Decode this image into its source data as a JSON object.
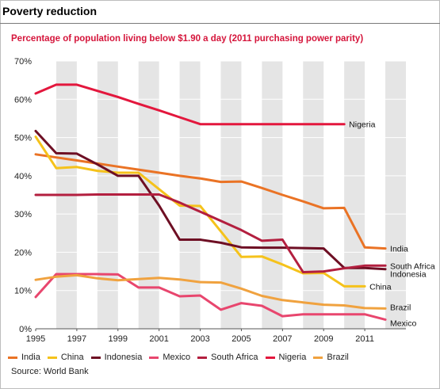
{
  "header": {
    "title": "Poverty reduction"
  },
  "chart_data": {
    "type": "line",
    "title": "Percentage of population living below $1.90 a day (2011 purchasing power parity)",
    "xlabel": "",
    "ylabel": "",
    "xlim": [
      1995,
      2013
    ],
    "ylim": [
      0,
      70
    ],
    "x_ticks": [
      "1995",
      "1997",
      "1999",
      "2001",
      "2003",
      "2005",
      "2007",
      "2009",
      "2011"
    ],
    "y_ticks": [
      "0%",
      "10%",
      "20%",
      "30%",
      "40%",
      "50%",
      "60%",
      "70%"
    ],
    "grid": "alternating vertical bands",
    "legend_position": "bottom",
    "series": [
      {
        "name": "India",
        "color": "#ea7325",
        "points": [
          [
            1995,
            45.6
          ],
          [
            1996,
            44.8
          ],
          [
            1997,
            44
          ],
          [
            1998,
            43.2
          ],
          [
            1999,
            42.4
          ],
          [
            2000,
            41.6
          ],
          [
            2001,
            40.8
          ],
          [
            2002,
            40
          ],
          [
            2003,
            39.3
          ],
          [
            2004,
            38.4
          ],
          [
            2005,
            38.5
          ],
          [
            2006,
            36.8
          ],
          [
            2007,
            35
          ],
          [
            2008,
            33.3
          ],
          [
            2009,
            31.5
          ],
          [
            2010,
            31.6
          ],
          [
            2011,
            21.3
          ],
          [
            2012,
            21
          ]
        ]
      },
      {
        "name": "China",
        "color": "#f5c21b",
        "points": [
          [
            1995,
            50.2
          ],
          [
            1996,
            42
          ],
          [
            1997,
            42.3
          ],
          [
            1998,
            41.3
          ],
          [
            1999,
            40.8
          ],
          [
            2000,
            40.8
          ],
          [
            2001,
            36.5
          ],
          [
            2002,
            32.2
          ],
          [
            2003,
            32.1
          ],
          [
            2004,
            25.5
          ],
          [
            2005,
            18.8
          ],
          [
            2006,
            18.9
          ],
          [
            2007,
            16.8
          ],
          [
            2008,
            14.5
          ],
          [
            2009,
            14.6
          ],
          [
            2010,
            11.1
          ],
          [
            2011,
            11.1
          ]
        ]
      },
      {
        "name": "Indonesia",
        "color": "#6e0f24",
        "points": [
          [
            1995,
            51.7
          ],
          [
            1996,
            45.9
          ],
          [
            1997,
            45.8
          ],
          [
            1998,
            43
          ],
          [
            1999,
            40
          ],
          [
            2000,
            40
          ],
          [
            2001,
            32.2
          ],
          [
            2002,
            23.3
          ],
          [
            2003,
            23.3
          ],
          [
            2004,
            22.5
          ],
          [
            2005,
            21.3
          ],
          [
            2006,
            21.2
          ],
          [
            2007,
            21.2
          ],
          [
            2008,
            21.1
          ],
          [
            2009,
            21
          ],
          [
            2010,
            15.9
          ],
          [
            2011,
            15.9
          ],
          [
            2012,
            15.6
          ]
        ]
      },
      {
        "name": "Mexico",
        "color": "#e8466e",
        "points": [
          [
            1995,
            8.3
          ],
          [
            1996,
            14.3
          ],
          [
            1997,
            14.3
          ],
          [
            1998,
            14.3
          ],
          [
            1999,
            14.2
          ],
          [
            2000,
            10.8
          ],
          [
            2001,
            10.8
          ],
          [
            2002,
            8.5
          ],
          [
            2003,
            8.7
          ],
          [
            2004,
            5
          ],
          [
            2005,
            6.7
          ],
          [
            2006,
            6
          ],
          [
            2007,
            3.3
          ],
          [
            2008,
            3.8
          ],
          [
            2009,
            3.8
          ],
          [
            2010,
            3.8
          ],
          [
            2011,
            3.8
          ],
          [
            2012,
            2.4
          ]
        ]
      },
      {
        "name": "South Africa",
        "color": "#b31f3f",
        "points": [
          [
            1995,
            35
          ],
          [
            1996,
            35
          ],
          [
            1997,
            35
          ],
          [
            1998,
            35.1
          ],
          [
            1999,
            35.1
          ],
          [
            2000,
            35.1
          ],
          [
            2001,
            35.1
          ],
          [
            2002,
            33
          ],
          [
            2003,
            30.6
          ],
          [
            2004,
            28.2
          ],
          [
            2005,
            25.8
          ],
          [
            2006,
            23
          ],
          [
            2007,
            23.3
          ],
          [
            2008,
            14.8
          ],
          [
            2009,
            15
          ],
          [
            2010,
            15.8
          ],
          [
            2011,
            16.5
          ],
          [
            2012,
            16.5
          ]
        ]
      },
      {
        "name": "Nigeria",
        "color": "#e3173d",
        "points": [
          [
            1995,
            61.5
          ],
          [
            1996,
            63.8
          ],
          [
            1997,
            63.8
          ],
          [
            1998,
            62.2
          ],
          [
            1999,
            60.6
          ],
          [
            2000,
            58.8
          ],
          [
            2001,
            57.1
          ],
          [
            2002,
            55.3
          ],
          [
            2003,
            53.5
          ],
          [
            2004,
            53.5
          ],
          [
            2005,
            53.5
          ],
          [
            2006,
            53.5
          ],
          [
            2007,
            53.5
          ],
          [
            2008,
            53.5
          ],
          [
            2009,
            53.5
          ],
          [
            2010,
            53.5
          ]
        ]
      },
      {
        "name": "Brazil",
        "color": "#f0a23f",
        "points": [
          [
            1995,
            12.8
          ],
          [
            1996,
            13.6
          ],
          [
            1997,
            14
          ],
          [
            1998,
            13.2
          ],
          [
            1999,
            12.7
          ],
          [
            2000,
            13
          ],
          [
            2001,
            13.3
          ],
          [
            2002,
            12.9
          ],
          [
            2003,
            12.2
          ],
          [
            2004,
            12.1
          ],
          [
            2005,
            10.5
          ],
          [
            2006,
            8.6
          ],
          [
            2007,
            7.5
          ],
          [
            2008,
            6.9
          ],
          [
            2009,
            6.3
          ],
          [
            2010,
            6.1
          ],
          [
            2011,
            5.4
          ],
          [
            2012,
            5.3
          ]
        ]
      }
    ],
    "end_labels": [
      {
        "series": "Nigeria",
        "text": "Nigeria"
      },
      {
        "series": "India",
        "text": "India"
      },
      {
        "series": "South Africa",
        "text": "South Africa"
      },
      {
        "series": "Indonesia",
        "text": "Indonesia"
      },
      {
        "series": "China",
        "text": "China"
      },
      {
        "series": "Brazil",
        "text": "Brazil"
      },
      {
        "series": "Mexico",
        "text": "Mexico"
      }
    ]
  },
  "legend": {
    "items": [
      {
        "label": "India",
        "color": "#ea7325"
      },
      {
        "label": "China",
        "color": "#f5c21b"
      },
      {
        "label": "Indonesia",
        "color": "#6e0f24"
      },
      {
        "label": "Mexico",
        "color": "#e8466e"
      },
      {
        "label": "South Africa",
        "color": "#b31f3f"
      },
      {
        "label": "Nigeria",
        "color": "#e3173d"
      },
      {
        "label": "Brazil",
        "color": "#f0a23f"
      }
    ]
  },
  "source": "Source: World Bank"
}
